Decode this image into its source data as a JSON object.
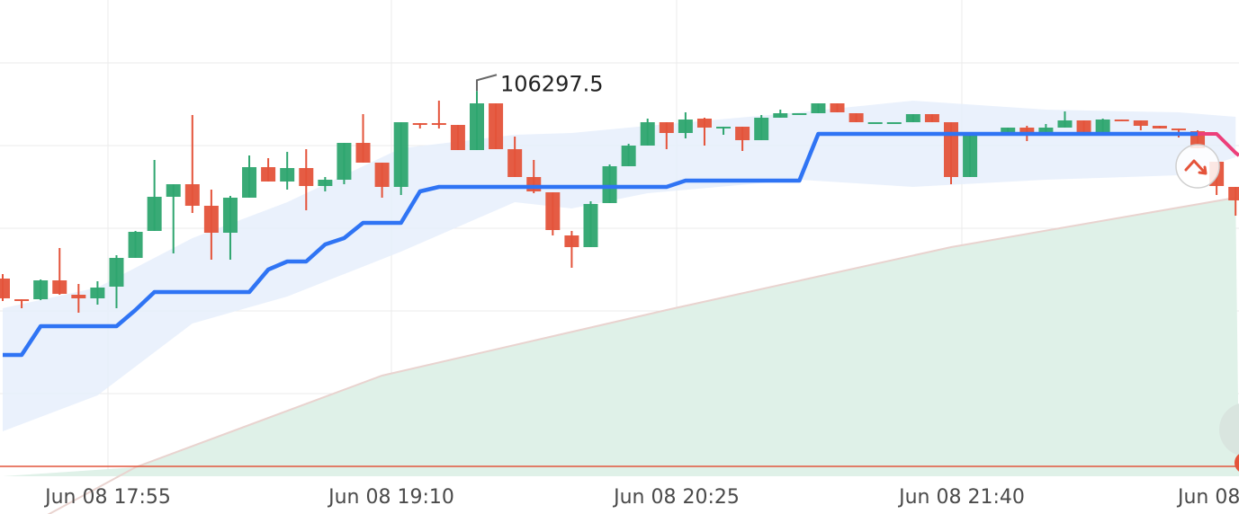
{
  "chart_data": {
    "type": "candlestick",
    "interval": "5m",
    "x_tick_labels": [
      "Jun 08 17:55",
      "Jun 08 19:10",
      "Jun 08 20:25",
      "Jun 08 21:40",
      "Jun 08"
    ],
    "candles_ohlc": [
      [
        105880,
        105890,
        105830,
        105836
      ],
      [
        105834,
        105834,
        105814,
        105832
      ],
      [
        105834,
        105878,
        105832,
        105876
      ],
      [
        105876,
        105948,
        105844,
        105846
      ],
      [
        105844,
        105868,
        105804,
        105836
      ],
      [
        105836,
        105874,
        105822,
        105860
      ],
      [
        105862,
        105932,
        105814,
        105926
      ],
      [
        105926,
        105986,
        105926,
        105984
      ],
      [
        105986,
        106144,
        105986,
        106062
      ],
      [
        106062,
        106090,
        105936,
        106090
      ],
      [
        106090,
        106244,
        106026,
        106042
      ],
      [
        106042,
        106078,
        105922,
        105982
      ],
      [
        105982,
        106064,
        105922,
        106060
      ],
      [
        106060,
        106154,
        106060,
        106128
      ],
      [
        106128,
        106148,
        106096,
        106096
      ],
      [
        106096,
        106162,
        106078,
        106126
      ],
      [
        106126,
        106168,
        106032,
        106086
      ],
      [
        106086,
        106106,
        106074,
        106100
      ],
      [
        106100,
        106182,
        106090,
        106182
      ],
      [
        106182,
        106246,
        106138,
        106138
      ],
      [
        106138,
        106138,
        106060,
        106084
      ],
      [
        106084,
        106228,
        106066,
        106228
      ],
      [
        106226,
        106226,
        106214,
        106224
      ],
      [
        106226,
        106276,
        106214,
        106224
      ],
      [
        106222,
        106222,
        106166,
        106166
      ],
      [
        106166,
        106297.5,
        106166,
        106270
      ],
      [
        106270,
        106270,
        106168,
        106168
      ],
      [
        106168,
        106196,
        106106,
        106106
      ],
      [
        106106,
        106144,
        106070,
        106074
      ],
      [
        106072,
        106072,
        105976,
        105988
      ],
      [
        105976,
        105986,
        105904,
        105950
      ],
      [
        105950,
        106052,
        105950,
        106046
      ],
      [
        106048,
        106134,
        106048,
        106130
      ],
      [
        106130,
        106180,
        106130,
        106176
      ],
      [
        106176,
        106236,
        106176,
        106228
      ],
      [
        106228,
        106228,
        106168,
        106204
      ],
      [
        106204,
        106250,
        106192,
        106234
      ],
      [
        106236,
        106238,
        106176,
        106216
      ],
      [
        106216,
        106218,
        106200,
        106218
      ],
      [
        106218,
        106218,
        106164,
        106188
      ],
      [
        106188,
        106244,
        106188,
        106238
      ],
      [
        106238,
        106256,
        106238,
        106248
      ],
      [
        106248,
        106248,
        106248,
        106248
      ],
      [
        106248,
        106270,
        106248,
        106270
      ],
      [
        106270,
        106270,
        106250,
        106250
      ],
      [
        106248,
        106248,
        106228,
        106228
      ],
      [
        106228,
        106228,
        106228,
        106228
      ],
      [
        106228,
        106228,
        106228,
        106228
      ],
      [
        106228,
        106246,
        106228,
        106246
      ],
      [
        106246,
        106246,
        106228,
        106228
      ],
      [
        106228,
        106228,
        106090,
        106106
      ],
      [
        106106,
        106204,
        106106,
        106204
      ],
      [
        106200,
        106202,
        106198,
        106202
      ],
      [
        106204,
        106216,
        106204,
        106216
      ],
      [
        106216,
        106220,
        106186,
        106202
      ],
      [
        106204,
        106224,
        106204,
        106216
      ],
      [
        106216,
        106252,
        106216,
        106232
      ],
      [
        106232,
        106232,
        106206,
        106206
      ],
      [
        106206,
        106236,
        106206,
        106234
      ],
      [
        106234,
        106234,
        106232,
        106232
      ],
      [
        106232,
        106232,
        106210,
        106220
      ],
      [
        106220,
        106220,
        106214,
        106214
      ],
      [
        106214,
        106214,
        106194,
        106212
      ],
      [
        106208,
        106210,
        106170,
        106170
      ],
      [
        106140,
        106140,
        106066,
        106086
      ],
      [
        106084,
        106084,
        106020,
        106054
      ]
    ],
    "trend_line": [
      105710,
      105710,
      105774,
      105774,
      105774,
      105774,
      105774,
      105810,
      105850,
      105850,
      105850,
      105850,
      105850,
      105850,
      105900,
      105918,
      105918,
      105956,
      105970,
      106004,
      106004,
      106004,
      106074,
      106084,
      106084,
      106084,
      106084,
      106084,
      106084,
      106084,
      106084,
      106084,
      106084,
      106084,
      106084,
      106084,
      106098,
      106098,
      106098,
      106098,
      106098,
      106098,
      106098,
      106202,
      106202,
      106202,
      106202,
      106202,
      106202,
      106202,
      106202,
      106202,
      106202,
      106202,
      106202,
      106202,
      106202,
      106202,
      106202,
      106202,
      106202,
      106202,
      106202,
      106202,
      106202,
      106160
    ],
    "trend_line_bearish_from_index": 62,
    "band": [
      [
        0,
        105814,
        105540
      ],
      [
        5,
        105860,
        105620
      ],
      [
        10,
        105970,
        105780
      ],
      [
        15,
        106050,
        105840
      ],
      [
        21,
        106170,
        105940
      ],
      [
        27,
        106200,
        106050
      ],
      [
        30,
        106204,
        106036
      ],
      [
        34,
        106220,
        106070
      ],
      [
        42,
        106250,
        106100
      ],
      [
        48,
        106276,
        106084
      ],
      [
        55,
        106256,
        106100
      ],
      [
        62,
        106250,
        106110
      ],
      [
        65,
        106240,
        106150
      ]
    ],
    "moving_average_area": [
      [
        0,
        105300
      ],
      [
        7,
        105460
      ],
      [
        20,
        105664
      ],
      [
        35,
        105810
      ],
      [
        50,
        105950
      ],
      [
        65,
        106060
      ]
    ],
    "horizontal_price_line": 105462,
    "max_label": "106297.5",
    "max_index": 25,
    "colors": {
      "up": "#2ea56f",
      "down": "#e4533a",
      "trend": "#2f74f4",
      "trend_bearish": "#ec3f7a",
      "band": "#e6effc",
      "area": "#dff1e8",
      "area_line": "#e9d3cf",
      "price_line": "#e2553c"
    },
    "grid": true,
    "overlay_buttons": {
      "trend_arrow_icon": "trend-down-arrow-icon"
    }
  }
}
